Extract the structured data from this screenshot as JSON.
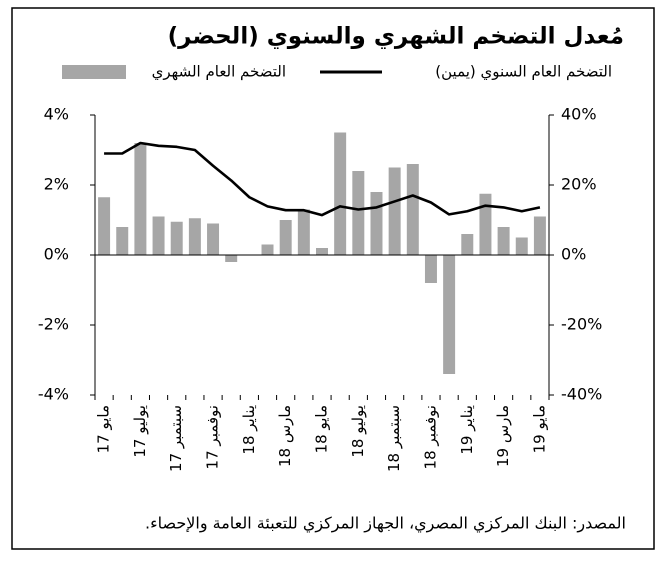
{
  "chart_data": {
    "type": "bar-line",
    "title": "مُعدل التضخم الشهري والسنوي (الحضر)",
    "source": "المصدر: البنك المركزي المصري، الجهاز المركزي للتعبئة العامة والإحصاء.",
    "categories": [
      "مايو 17",
      null,
      "يوليو 17",
      null,
      "سبتمبر 17",
      null,
      "نوفمبر 17",
      null,
      "يناير 18",
      null,
      "مارس 18",
      null,
      "مايو 18",
      null,
      "يوليو 18",
      null,
      "سبتمبر 18",
      null,
      "نوفمبر 18",
      null,
      "يناير 19",
      null,
      "مارس 19",
      null,
      "مايو 19"
    ],
    "series": [
      {
        "name": "التضخم العام الشهري",
        "type": "bar",
        "color": "#a6a6a6",
        "values": [
          1.65,
          0.8,
          3.2,
          1.1,
          0.95,
          1.05,
          0.9,
          -0.2,
          0,
          0.3,
          1.0,
          1.3,
          0.2,
          3.5,
          2.4,
          1.8,
          2.5,
          2.6,
          -0.8,
          -3.4,
          0.6,
          1.75,
          0.8,
          0.5,
          1.1
        ]
      },
      {
        "name": "التضخم العام السنوي (يمين)",
        "type": "line",
        "axis": "y2",
        "color": "#000000",
        "values": [
          29,
          29,
          32,
          31.2,
          30.9,
          30,
          25.5,
          21.3,
          16.5,
          13.9,
          12.8,
          12.8,
          11.4,
          13.9,
          13,
          13.6,
          15.3,
          17,
          15,
          11.6,
          12.5,
          14.1,
          13.6,
          12.5,
          13.6
        ]
      }
    ],
    "ylim": [
      -4,
      4
    ],
    "yticks": [
      {
        "value": -4,
        "label": "-4%"
      },
      {
        "value": -2,
        "label": "-2%"
      },
      {
        "value": 0,
        "label": "0%"
      },
      {
        "value": 2,
        "label": "2%"
      },
      {
        "value": 4,
        "label": "4%"
      }
    ],
    "y2lim": [
      -40,
      40
    ],
    "y2ticks": [
      {
        "value": -40,
        "label": "-40%"
      },
      {
        "value": -20,
        "label": "-20%"
      },
      {
        "value": 0,
        "label": "0%"
      },
      {
        "value": 20,
        "label": "20%"
      },
      {
        "value": 40,
        "label": "40%"
      }
    ],
    "grid": false
  }
}
